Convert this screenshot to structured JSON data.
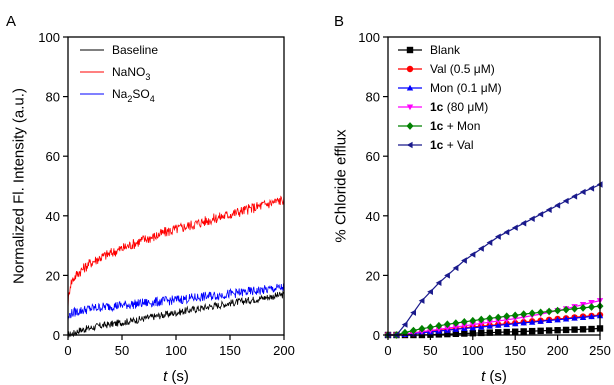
{
  "chart_data": [
    {
      "panel": "A",
      "type": "line",
      "xlabel_var": "t",
      "xlabel_unit": " (s)",
      "ylabel": "Normalized Fl. Intensity (a.u.)",
      "xlim": [
        0,
        200
      ],
      "ylim": [
        0,
        100
      ],
      "xticks": [
        0,
        50,
        100,
        150,
        200
      ],
      "yticks": [
        0,
        20,
        40,
        60,
        80,
        100
      ],
      "legend_position": "top-left",
      "series": [
        {
          "name": "Baseline",
          "color": "#000000",
          "noise": 1.2,
          "x": [
            0,
            5,
            10,
            20,
            30,
            40,
            50,
            60,
            70,
            80,
            90,
            100,
            110,
            120,
            130,
            140,
            150,
            160,
            170,
            180,
            190,
            200
          ],
          "y": [
            0,
            0.5,
            1.5,
            2.3,
            3.1,
            3.6,
            4.2,
            4.8,
            5.5,
            6.2,
            6.8,
            7.5,
            8.2,
            8.8,
            9.5,
            10,
            10.7,
            11.2,
            11.8,
            12.4,
            13.0,
            13.5
          ]
        },
        {
          "name": "NaNO3",
          "name_parts": [
            "NaNO",
            "3"
          ],
          "color": "#ff0000",
          "noise": 1.8,
          "x": [
            0,
            2,
            5,
            10,
            20,
            30,
            40,
            50,
            60,
            70,
            80,
            90,
            100,
            110,
            120,
            130,
            140,
            150,
            160,
            170,
            180,
            190,
            200
          ],
          "y": [
            10,
            17,
            19,
            21,
            24,
            26,
            27.5,
            29,
            30.5,
            32,
            33,
            34.5,
            35.5,
            36.5,
            37.5,
            38.5,
            39.5,
            40.5,
            41.5,
            42.5,
            43.5,
            44.5,
            45.5
          ]
        },
        {
          "name": "Na2SO4",
          "name_parts": [
            "Na",
            "2",
            "SO",
            "4"
          ],
          "color": "#0000ff",
          "noise": 1.6,
          "x": [
            0,
            2,
            5,
            10,
            20,
            30,
            40,
            50,
            60,
            70,
            80,
            90,
            100,
            110,
            120,
            130,
            140,
            150,
            160,
            170,
            180,
            190,
            200
          ],
          "y": [
            5,
            7,
            7.5,
            8,
            8.8,
            9.3,
            9.7,
            10,
            10.3,
            10.7,
            11,
            11.4,
            11.8,
            12.2,
            12.6,
            13,
            13.4,
            13.8,
            14.2,
            14.6,
            15,
            15.5,
            16
          ]
        }
      ]
    },
    {
      "panel": "B",
      "type": "line",
      "xlabel_var": "t",
      "xlabel_unit": " (s)",
      "ylabel": "% Chloride efflux",
      "xlim": [
        0,
        250
      ],
      "ylim": [
        0,
        100
      ],
      "xticks": [
        0,
        50,
        100,
        150,
        200,
        250
      ],
      "yticks": [
        0,
        20,
        40,
        60,
        80,
        100
      ],
      "legend_position": "top-left",
      "series": [
        {
          "name": "Blank",
          "label": {
            "bold": "",
            "text": "Blank"
          },
          "color": "#000000",
          "marker": "square",
          "x": [
            0,
            10,
            20,
            30,
            40,
            50,
            60,
            70,
            80,
            90,
            100,
            110,
            120,
            130,
            140,
            150,
            160,
            170,
            180,
            190,
            200,
            210,
            220,
            230,
            240,
            250
          ],
          "y": [
            0,
            0,
            0,
            0,
            0,
            0.1,
            0.2,
            0.3,
            0.4,
            0.5,
            0.6,
            0.7,
            0.8,
            0.9,
            1.0,
            1.1,
            1.2,
            1.3,
            1.4,
            1.5,
            1.6,
            1.7,
            1.8,
            1.9,
            2.0,
            2.2
          ]
        },
        {
          "name": "Val (0.5 μM)",
          "label": {
            "bold": "",
            "text": "Val (0.5 μM)"
          },
          "color": "#ff0000",
          "marker": "circle",
          "x": [
            0,
            10,
            20,
            30,
            40,
            50,
            60,
            70,
            80,
            90,
            100,
            110,
            120,
            130,
            140,
            150,
            160,
            170,
            180,
            190,
            200,
            210,
            220,
            230,
            240,
            250
          ],
          "y": [
            0,
            0,
            0.3,
            0.6,
            0.9,
            1.2,
            1.5,
            1.8,
            2.1,
            2.4,
            2.7,
            3.0,
            3.2,
            3.5,
            3.8,
            4.0,
            4.3,
            4.6,
            4.8,
            5.1,
            5.4,
            5.6,
            5.9,
            6.2,
            6.4,
            6.7
          ]
        },
        {
          "name": "Mon (0.1 μM)",
          "label": {
            "bold": "",
            "text": "Mon (0.1 μM)"
          },
          "color": "#0000ff",
          "marker": "triangle-up",
          "x": [
            0,
            10,
            20,
            30,
            40,
            50,
            60,
            70,
            80,
            90,
            100,
            110,
            120,
            130,
            140,
            150,
            160,
            170,
            180,
            190,
            200,
            210,
            220,
            230,
            240,
            250
          ],
          "y": [
            0,
            0,
            0.2,
            0.5,
            0.8,
            1.0,
            1.3,
            1.6,
            1.9,
            2.2,
            2.4,
            2.7,
            3.0,
            3.3,
            3.5,
            3.8,
            4.1,
            4.3,
            4.6,
            4.9,
            5.1,
            5.4,
            5.7,
            5.9,
            6.2,
            6.5
          ]
        },
        {
          "name": "1c (80 μM)",
          "label": {
            "bold": "1c",
            "text": " (80 μM)"
          },
          "color": "#ff00ff",
          "marker": "triangle-down",
          "x": [
            0,
            10,
            20,
            30,
            40,
            50,
            60,
            70,
            80,
            90,
            100,
            110,
            120,
            130,
            140,
            150,
            160,
            170,
            180,
            190,
            200,
            210,
            220,
            230,
            240,
            250
          ],
          "y": [
            0,
            0,
            0.3,
            0.7,
            1.1,
            1.5,
            1.9,
            2.3,
            2.7,
            3.1,
            3.5,
            3.9,
            4.3,
            4.7,
            5.1,
            5.5,
            6.0,
            6.5,
            7.0,
            7.6,
            8.2,
            8.8,
            9.5,
            10.2,
            10.9,
            11.5
          ]
        },
        {
          "name": "1c + Mon",
          "label": {
            "bold": "1c",
            "text": " + Mon"
          },
          "color": "#008000",
          "marker": "diamond",
          "x": [
            0,
            10,
            20,
            30,
            40,
            50,
            60,
            70,
            80,
            90,
            100,
            110,
            120,
            130,
            140,
            150,
            160,
            170,
            180,
            190,
            200,
            210,
            220,
            230,
            240,
            250
          ],
          "y": [
            0,
            0,
            0.8,
            1.5,
            2.1,
            2.6,
            3.1,
            3.6,
            4.0,
            4.4,
            4.8,
            5.2,
            5.6,
            5.9,
            6.3,
            6.6,
            7.0,
            7.3,
            7.6,
            7.9,
            8.2,
            8.5,
            8.8,
            9.1,
            9.4,
            9.7
          ]
        },
        {
          "name": "1c + Val",
          "label": {
            "bold": "1c",
            "text": " + Val"
          },
          "color": "#1a1a8c",
          "marker": "triangle-left",
          "x": [
            0,
            10,
            20,
            30,
            40,
            50,
            60,
            70,
            80,
            90,
            100,
            110,
            120,
            130,
            140,
            150,
            160,
            170,
            180,
            190,
            200,
            210,
            220,
            230,
            240,
            250
          ],
          "y": [
            0,
            0,
            3.5,
            7.5,
            11.5,
            14.5,
            17.5,
            20.0,
            22.5,
            25.0,
            27.0,
            29.0,
            31.0,
            33.0,
            34.5,
            36.0,
            37.5,
            39.0,
            40.5,
            42.0,
            43.5,
            45.0,
            46.5,
            48.0,
            49.2,
            50.5
          ]
        }
      ]
    }
  ]
}
